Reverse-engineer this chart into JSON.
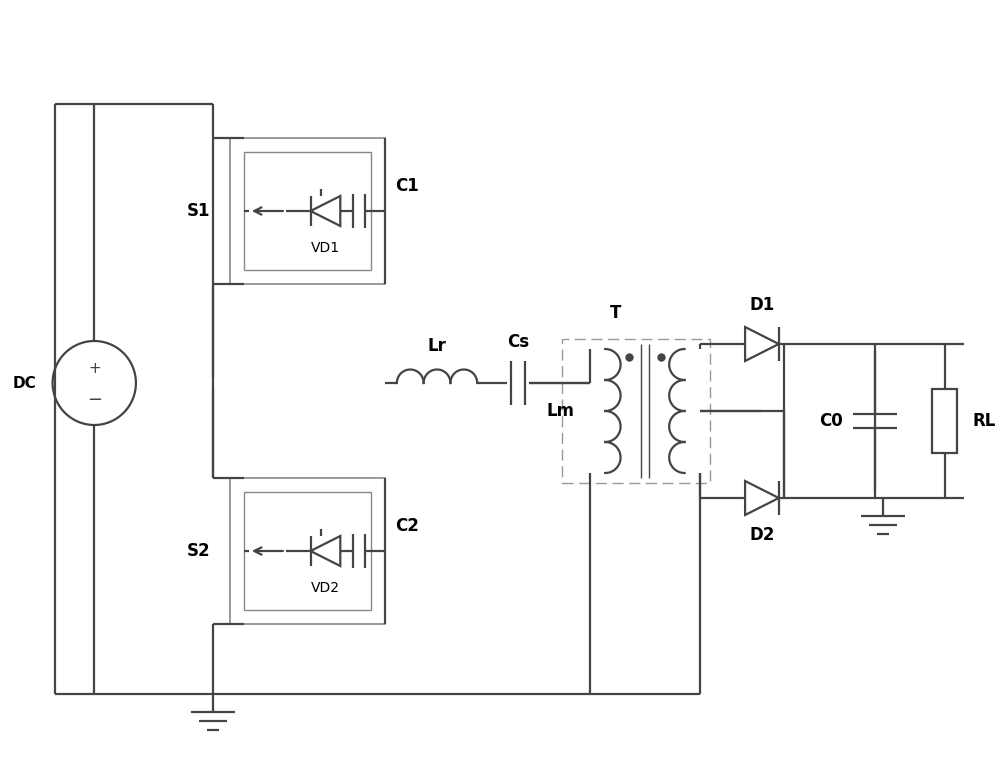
{
  "bg_color": "#ffffff",
  "lc": "#444444",
  "lw": 1.6,
  "fig_w": 10.0,
  "fig_h": 7.66,
  "xlim": [
    0,
    10
  ],
  "ylim": [
    0,
    7.66
  ]
}
